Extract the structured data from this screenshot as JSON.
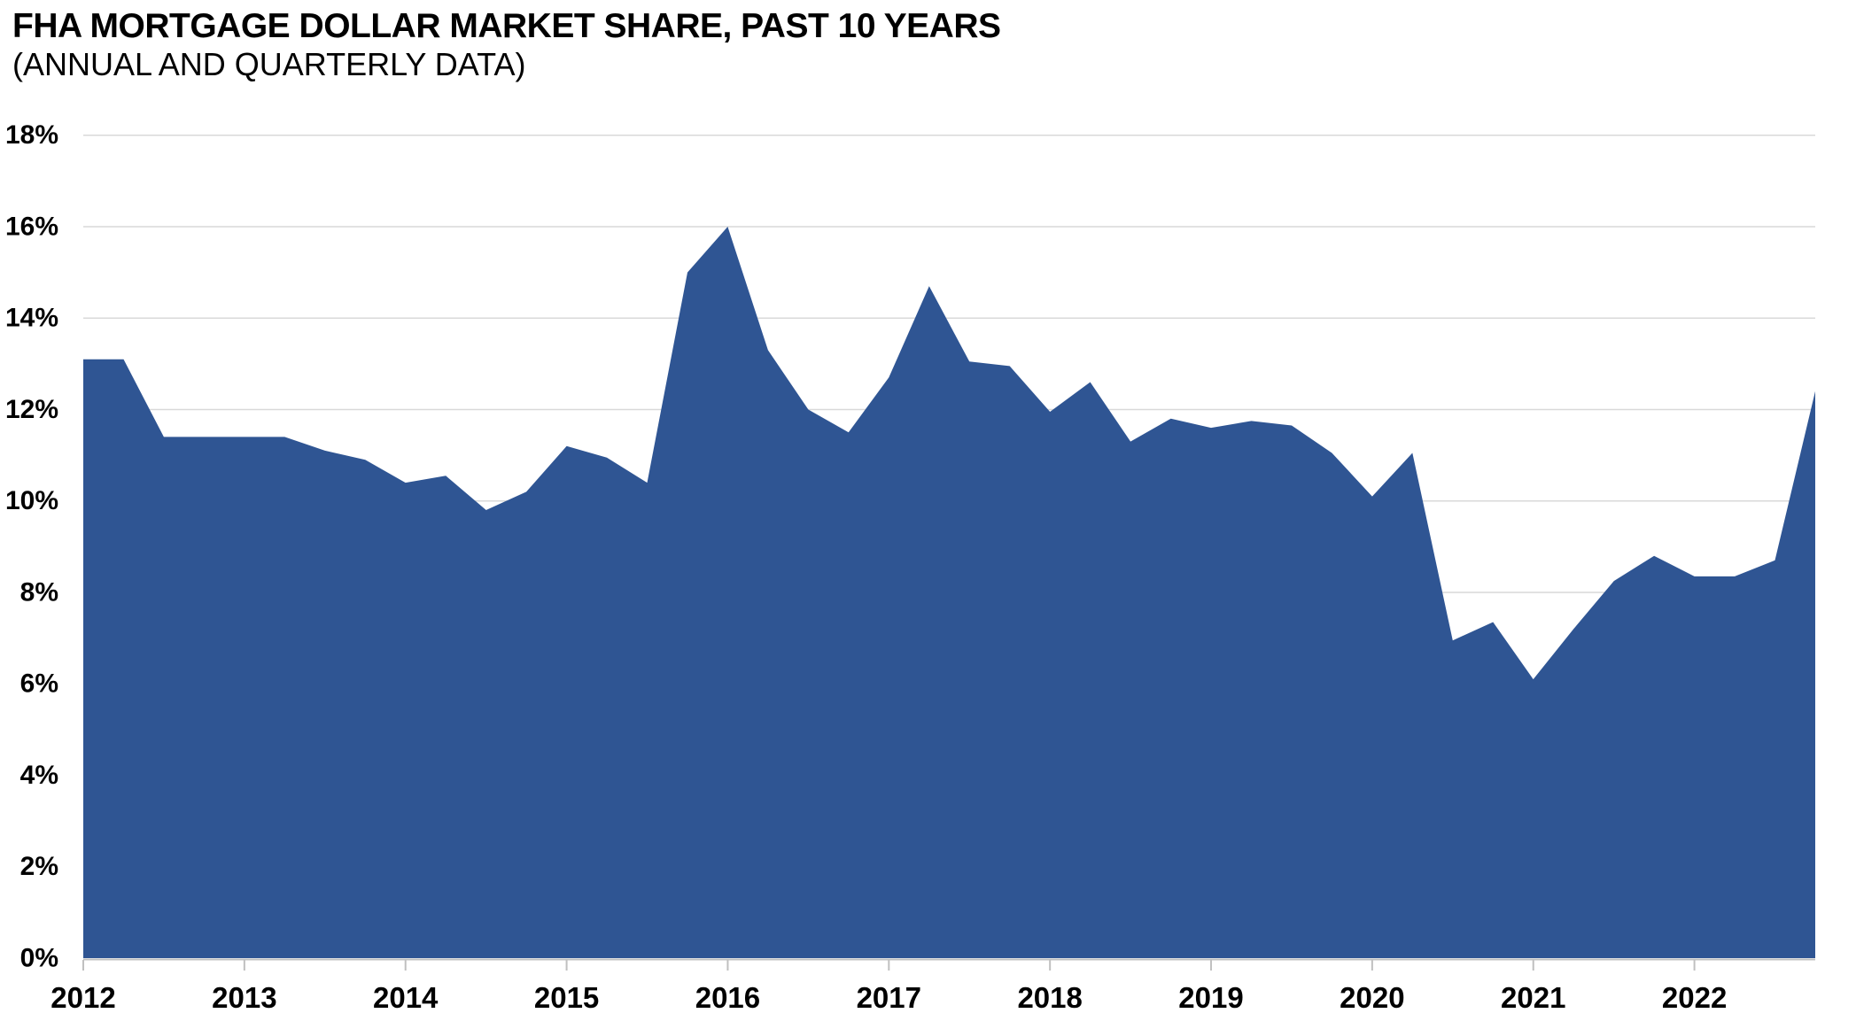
{
  "title": "FHA MORTGAGE DOLLAR MARKET SHARE, PAST 10 YEARS",
  "subtitle": "(ANNUAL AND QUARTERLY DATA)",
  "chart_data": {
    "type": "area",
    "title": "FHA MORTGAGE DOLLAR MARKET SHARE, PAST 10 YEARS",
    "subtitle": "(ANNUAL AND QUARTERLY DATA)",
    "categories": [
      "2012 Q1",
      "2012 Q2",
      "2012 Q3",
      "2012 Q4",
      "2013 Q1",
      "2013 Q2",
      "2013 Q3",
      "2013 Q4",
      "2014 Q1",
      "2014 Q2",
      "2014 Q3",
      "2014 Q4",
      "2015 Q1",
      "2015 Q2",
      "2015 Q3",
      "2015 Q4",
      "2016 Q1",
      "2016 Q2",
      "2016 Q3",
      "2016 Q4",
      "2017 Q1",
      "2017 Q2",
      "2017 Q3",
      "2017 Q4",
      "2018 Q1",
      "2018 Q2",
      "2018 Q3",
      "2018 Q4",
      "2019 Q1",
      "2019 Q2",
      "2019 Q3",
      "2019 Q4",
      "2020 Q1",
      "2020 Q2",
      "2020 Q3",
      "2020 Q4",
      "2021 Q1",
      "2021 Q2",
      "2021 Q3",
      "2021 Q4",
      "2022 Q1",
      "2022 Q2",
      "2022 Q3",
      "2022 Q4"
    ],
    "values": [
      13.1,
      13.1,
      11.4,
      11.4,
      11.4,
      11.4,
      11.1,
      10.9,
      10.4,
      10.55,
      9.8,
      10.2,
      11.2,
      10.95,
      10.4,
      15.0,
      16.0,
      13.3,
      12.0,
      11.5,
      12.7,
      14.7,
      13.05,
      12.95,
      11.95,
      12.6,
      11.3,
      11.8,
      11.6,
      11.75,
      11.65,
      11.05,
      10.1,
      11.05,
      6.95,
      7.35,
      6.1,
      7.2,
      8.25,
      8.8,
      8.35,
      8.35,
      8.7,
      12.4
    ],
    "x_tick_labels": [
      "2012",
      "2013",
      "2014",
      "2015",
      "2016",
      "2017",
      "2018",
      "2019",
      "2020",
      "2021",
      "2022"
    ],
    "y_tick_labels": [
      "0%",
      "2%",
      "4%",
      "6%",
      "8%",
      "10%",
      "12%",
      "14%",
      "16%",
      "18%"
    ],
    "ylim": [
      0,
      18
    ],
    "y_tick_step": 2,
    "xlabel": "",
    "ylabel": "",
    "grid": "horizontal",
    "legend": "none",
    "colors": {
      "area_fill": "#2F5593",
      "gridline": "#D9D9D9",
      "axis_line": "#C0C0C0",
      "tick_mark": "#C0C0C0",
      "label_text": "#000000",
      "background": "#FFFFFF"
    }
  }
}
